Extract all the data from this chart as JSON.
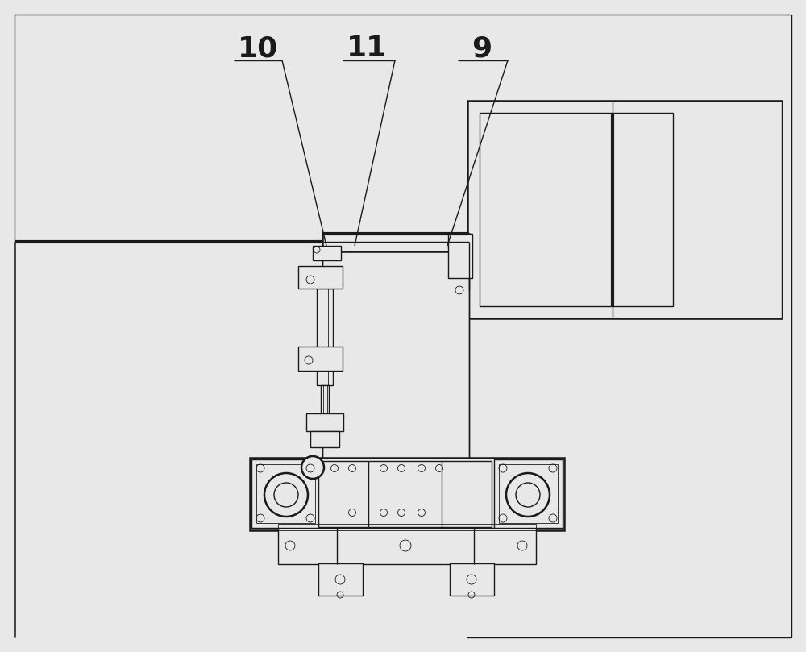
{
  "bg_color": "#e8e8e8",
  "panel_bg": "#f0f0f0",
  "white": "#ffffff",
  "line_color": "#1a1a1a",
  "label_10": "10",
  "label_11": "11",
  "label_9": "9",
  "label_fontsize": 26,
  "figsize": [
    10.0,
    8.09
  ],
  "dpi": 100
}
